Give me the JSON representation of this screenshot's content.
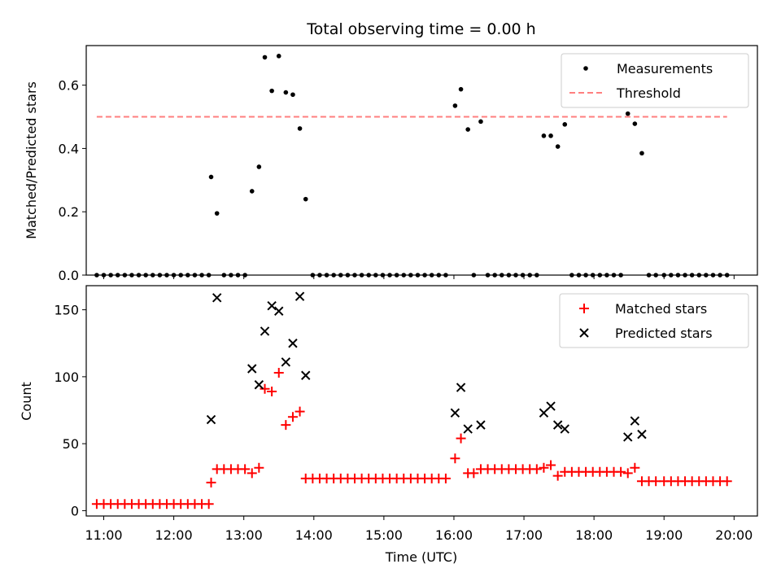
{
  "title": "Total observing time = 0.00 h",
  "xlabel": "Time (UTC)",
  "colors": {
    "measurement": "#000000",
    "threshold": "#ff7f7f",
    "matched": "#ff0000",
    "predicted": "#000000"
  },
  "chart_data": [
    {
      "type": "scatter",
      "ylabel": "Matched/Predicted stars",
      "xlim": [
        "10:45",
        "20:20"
      ],
      "ylim": [
        0,
        0.725
      ],
      "yticks": [
        "0.0",
        "0.2",
        "0.4",
        "0.6"
      ],
      "ytick_values": [
        0,
        0.2,
        0.4,
        0.6
      ],
      "legend_position": "top-right",
      "series": [
        {
          "name": "Measurements",
          "points": [
            [
              "10:54",
              0
            ],
            [
              "11:00",
              0
            ],
            [
              "11:06",
              0
            ],
            [
              "11:12",
              0
            ],
            [
              "11:18",
              0
            ],
            [
              "11:24",
              0
            ],
            [
              "11:30",
              0
            ],
            [
              "11:36",
              0
            ],
            [
              "11:42",
              0
            ],
            [
              "11:48",
              0
            ],
            [
              "11:54",
              0
            ],
            [
              "12:00",
              0
            ],
            [
              "12:06",
              0
            ],
            [
              "12:12",
              0
            ],
            [
              "12:18",
              0
            ],
            [
              "12:24",
              0
            ],
            [
              "12:30",
              0
            ],
            [
              "12:32",
              0.31
            ],
            [
              "12:37",
              0.195
            ],
            [
              "12:43",
              0
            ],
            [
              "12:49",
              0
            ],
            [
              "12:55",
              0
            ],
            [
              "13:01",
              0
            ],
            [
              "13:07",
              0.265
            ],
            [
              "13:13",
              0.342
            ],
            [
              "13:18",
              0.688
            ],
            [
              "13:24",
              0.582
            ],
            [
              "13:30",
              0.692
            ],
            [
              "13:36",
              0.577
            ],
            [
              "13:42",
              0.57
            ],
            [
              "13:48",
              0.463
            ],
            [
              "13:53",
              0.24
            ],
            [
              "13:59",
              0
            ],
            [
              "14:05",
              0
            ],
            [
              "14:11",
              0
            ],
            [
              "14:17",
              0
            ],
            [
              "14:23",
              0
            ],
            [
              "14:29",
              0
            ],
            [
              "14:35",
              0
            ],
            [
              "14:41",
              0
            ],
            [
              "14:47",
              0
            ],
            [
              "14:53",
              0
            ],
            [
              "14:59",
              0
            ],
            [
              "15:05",
              0
            ],
            [
              "15:11",
              0
            ],
            [
              "15:17",
              0
            ],
            [
              "15:23",
              0
            ],
            [
              "15:29",
              0
            ],
            [
              "15:35",
              0
            ],
            [
              "15:41",
              0
            ],
            [
              "15:47",
              0
            ],
            [
              "15:53",
              0
            ],
            [
              "16:01",
              0.535
            ],
            [
              "16:06",
              0.587
            ],
            [
              "16:12",
              0.46
            ],
            [
              "16:17",
              0
            ],
            [
              "16:23",
              0.485
            ],
            [
              "16:29",
              0
            ],
            [
              "16:35",
              0
            ],
            [
              "16:41",
              0
            ],
            [
              "16:47",
              0
            ],
            [
              "16:53",
              0
            ],
            [
              "16:59",
              0
            ],
            [
              "17:05",
              0
            ],
            [
              "17:11",
              0
            ],
            [
              "17:17",
              0.44
            ],
            [
              "17:23",
              0.44
            ],
            [
              "17:29",
              0.406
            ],
            [
              "17:35",
              0.476
            ],
            [
              "17:41",
              0
            ],
            [
              "17:47",
              0
            ],
            [
              "17:53",
              0
            ],
            [
              "17:59",
              0
            ],
            [
              "18:05",
              0
            ],
            [
              "18:11",
              0
            ],
            [
              "18:17",
              0
            ],
            [
              "18:23",
              0
            ],
            [
              "18:29",
              0.51
            ],
            [
              "18:35",
              0.478
            ],
            [
              "18:41",
              0.385
            ],
            [
              "18:47",
              0
            ],
            [
              "18:53",
              0
            ],
            [
              "19:00",
              0
            ],
            [
              "19:06",
              0
            ],
            [
              "19:12",
              0
            ],
            [
              "19:18",
              0
            ],
            [
              "19:24",
              0
            ],
            [
              "19:30",
              0
            ],
            [
              "19:36",
              0
            ],
            [
              "19:42",
              0
            ],
            [
              "19:48",
              0
            ],
            [
              "19:54",
              0
            ]
          ]
        },
        {
          "name": "Threshold",
          "style": "dashed",
          "x": [
            "10:54",
            "19:54"
          ],
          "y": [
            0.5,
            0.5
          ]
        }
      ]
    },
    {
      "type": "scatter",
      "ylabel": "Count",
      "xlim": [
        "10:45",
        "20:20"
      ],
      "ylim": [
        -4,
        168
      ],
      "yticks": [
        "0",
        "50",
        "100",
        "150"
      ],
      "ytick_values": [
        0,
        50,
        100,
        150
      ],
      "xticks": [
        "11:00",
        "12:00",
        "13:00",
        "14:00",
        "15:00",
        "16:00",
        "17:00",
        "18:00",
        "19:00",
        "20:00"
      ],
      "legend_position": "top-right",
      "series": [
        {
          "name": "Matched stars",
          "marker": "+",
          "points": [
            [
              "10:54",
              5
            ],
            [
              "11:00",
              5
            ],
            [
              "11:06",
              5
            ],
            [
              "11:12",
              5
            ],
            [
              "11:18",
              5
            ],
            [
              "11:24",
              5
            ],
            [
              "11:30",
              5
            ],
            [
              "11:36",
              5
            ],
            [
              "11:42",
              5
            ],
            [
              "11:48",
              5
            ],
            [
              "11:54",
              5
            ],
            [
              "12:00",
              5
            ],
            [
              "12:06",
              5
            ],
            [
              "12:12",
              5
            ],
            [
              "12:18",
              5
            ],
            [
              "12:24",
              5
            ],
            [
              "12:30",
              5
            ],
            [
              "12:32",
              21
            ],
            [
              "12:37",
              31
            ],
            [
              "12:43",
              31
            ],
            [
              "12:49",
              31
            ],
            [
              "12:55",
              31
            ],
            [
              "13:01",
              31
            ],
            [
              "13:07",
              28
            ],
            [
              "13:13",
              32
            ],
            [
              "13:18",
              91
            ],
            [
              "13:24",
              89
            ],
            [
              "13:30",
              103
            ],
            [
              "13:36",
              64
            ],
            [
              "13:42",
              70
            ],
            [
              "13:48",
              74
            ],
            [
              "13:53",
              24
            ],
            [
              "13:59",
              24
            ],
            [
              "14:05",
              24
            ],
            [
              "14:11",
              24
            ],
            [
              "14:17",
              24
            ],
            [
              "14:23",
              24
            ],
            [
              "14:29",
              24
            ],
            [
              "14:35",
              24
            ],
            [
              "14:41",
              24
            ],
            [
              "14:47",
              24
            ],
            [
              "14:53",
              24
            ],
            [
              "14:59",
              24
            ],
            [
              "15:05",
              24
            ],
            [
              "15:11",
              24
            ],
            [
              "15:17",
              24
            ],
            [
              "15:23",
              24
            ],
            [
              "15:29",
              24
            ],
            [
              "15:35",
              24
            ],
            [
              "15:41",
              24
            ],
            [
              "15:47",
              24
            ],
            [
              "15:53",
              24
            ],
            [
              "16:01",
              39
            ],
            [
              "16:06",
              54
            ],
            [
              "16:12",
              28
            ],
            [
              "16:17",
              28
            ],
            [
              "16:23",
              31
            ],
            [
              "16:29",
              31
            ],
            [
              "16:35",
              31
            ],
            [
              "16:41",
              31
            ],
            [
              "16:47",
              31
            ],
            [
              "16:53",
              31
            ],
            [
              "16:59",
              31
            ],
            [
              "17:05",
              31
            ],
            [
              "17:11",
              31
            ],
            [
              "17:17",
              32
            ],
            [
              "17:23",
              34
            ],
            [
              "17:29",
              26
            ],
            [
              "17:35",
              29
            ],
            [
              "17:41",
              29
            ],
            [
              "17:47",
              29
            ],
            [
              "17:53",
              29
            ],
            [
              "17:59",
              29
            ],
            [
              "18:05",
              29
            ],
            [
              "18:11",
              29
            ],
            [
              "18:17",
              29
            ],
            [
              "18:23",
              29
            ],
            [
              "18:29",
              28
            ],
            [
              "18:35",
              32
            ],
            [
              "18:41",
              22
            ],
            [
              "18:47",
              22
            ],
            [
              "18:53",
              22
            ],
            [
              "19:00",
              22
            ],
            [
              "19:06",
              22
            ],
            [
              "19:12",
              22
            ],
            [
              "19:18",
              22
            ],
            [
              "19:24",
              22
            ],
            [
              "19:30",
              22
            ],
            [
              "19:36",
              22
            ],
            [
              "19:42",
              22
            ],
            [
              "19:48",
              22
            ],
            [
              "19:54",
              22
            ]
          ]
        },
        {
          "name": "Predicted stars",
          "marker": "x",
          "points": [
            [
              "12:32",
              68
            ],
            [
              "12:37",
              159
            ],
            [
              "13:07",
              106
            ],
            [
              "13:13",
              94
            ],
            [
              "13:18",
              134
            ],
            [
              "13:24",
              153
            ],
            [
              "13:30",
              149
            ],
            [
              "13:36",
              111
            ],
            [
              "13:42",
              125
            ],
            [
              "13:48",
              160
            ],
            [
              "13:53",
              101
            ],
            [
              "16:01",
              73
            ],
            [
              "16:06",
              92
            ],
            [
              "16:12",
              61
            ],
            [
              "16:23",
              64
            ],
            [
              "17:17",
              73
            ],
            [
              "17:23",
              78
            ],
            [
              "17:29",
              64
            ],
            [
              "17:35",
              61
            ],
            [
              "18:29",
              55
            ],
            [
              "18:35",
              67
            ],
            [
              "18:41",
              57
            ]
          ]
        }
      ]
    }
  ]
}
